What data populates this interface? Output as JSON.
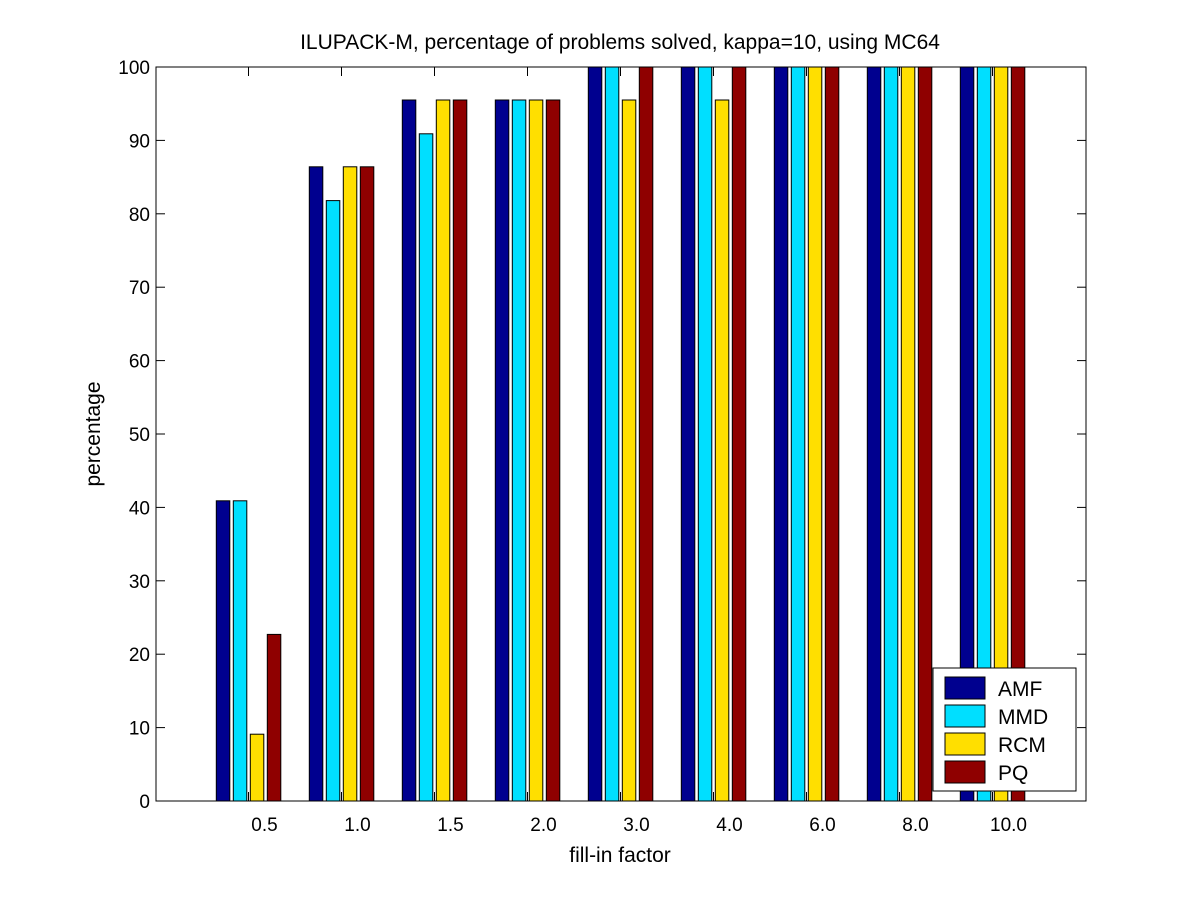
{
  "chart_data": {
    "type": "bar",
    "title": "ILUPACK-M, percentage of problems solved, kappa=10, using MC64",
    "xlabel": "fill-in factor",
    "ylabel": "percentage",
    "ylim": [
      0,
      100
    ],
    "yticks": [
      "0",
      "10",
      "20",
      "30",
      "40",
      "50",
      "60",
      "70",
      "80",
      "90",
      "100"
    ],
    "categories": [
      "0.5",
      "1.0",
      "1.5",
      "2.0",
      "3.0",
      "4.0",
      "6.0",
      "8.0",
      "10.0"
    ],
    "series": [
      {
        "name": "AMF",
        "color": "#00008f",
        "values": [
          40.9,
          86.4,
          95.5,
          95.5,
          100,
          100,
          100,
          100,
          100
        ]
      },
      {
        "name": "MMD",
        "color": "#00dfff",
        "values": [
          40.9,
          81.8,
          90.9,
          95.5,
          100,
          100,
          100,
          100,
          100
        ]
      },
      {
        "name": "RCM",
        "color": "#ffdf00",
        "values": [
          9.1,
          86.4,
          95.5,
          95.5,
          95.5,
          95.5,
          100,
          100,
          100
        ]
      },
      {
        "name": "PQ",
        "color": "#8f0000",
        "values": [
          22.7,
          86.4,
          95.5,
          95.5,
          100,
          100,
          100,
          100,
          100
        ]
      }
    ],
    "grid": false,
    "legend_position": "bottom-right"
  }
}
